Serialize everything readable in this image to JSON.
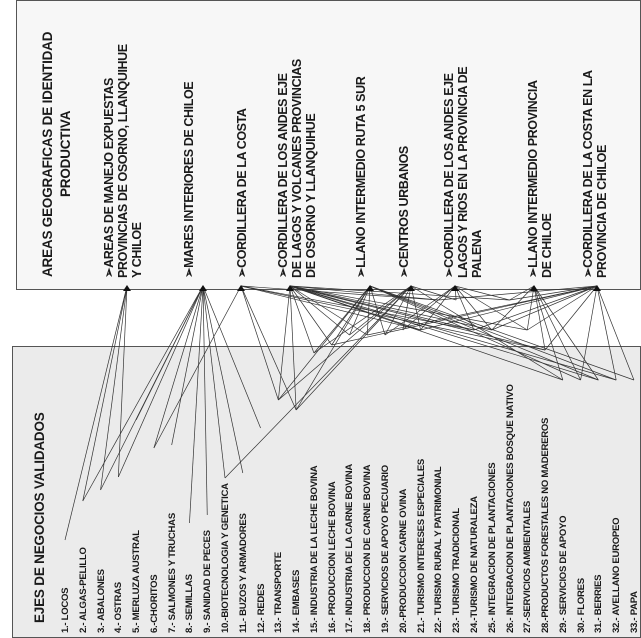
{
  "areas_panel": {
    "title_line1": "AREAS GEOGRAFICAS DE IDENTIDAD",
    "title_line2": "PRODUCTIVA",
    "areas": [
      {
        "lines": [
          "AREAS DE MANEJO EXPUESTAS",
          "PROVINCIAS DE OSORNO, LLANQUIHUE",
          "Y CHILOE"
        ]
      },
      {
        "lines": [
          "MARES INTERIORES DE CHILOE"
        ]
      },
      {
        "lines": [
          "CORDILLERA DE LA COSTA"
        ]
      },
      {
        "lines": [
          "CORDILLERA DE LOS ANDES EJE",
          "DE LAGOS Y VOLCANES PROVINCIAS",
          "DE OSORNO Y LLANQUIHUE"
        ]
      },
      {
        "lines": [
          "LLANO INTERMEDIO RUTA 5 SUR"
        ]
      },
      {
        "lines": [
          "CENTROS URBANOS"
        ]
      },
      {
        "lines": [
          "CORDILLERA DE LOS ANDES EJE",
          "LAGOS Y RIOS EN LA PROVINCIA DE",
          "PALENA"
        ]
      },
      {
        "lines": [
          "LLANO INTERMEDIO PROVINCIA",
          "DE CHILOE"
        ]
      },
      {
        "lines": [
          "CORDILLERA DE LA COSTA EN LA",
          "PROVINCIA DE CHILOE"
        ]
      }
    ]
  },
  "business_panel": {
    "title": "EJES DE NEGOCIOS VALIDADOS",
    "items": [
      "1.- LOCOS",
      "2.- ALGAS-PELILLO",
      "3.- ABALONES",
      "4.- OSTRAS",
      "5.- MERLUZA AUSTRAL",
      "6.-CHORITOS",
      "7.- SALMONES Y TRUCHAS",
      "8.- SEMILLAS",
      "9.- SANIDAD DE PECES",
      "10.-BIOTECNOLOGIA Y GENETICA",
      "11.- BUZOS Y ARMADORES",
      "12.- REDES",
      "13.- TRANSPORTE",
      "14.- EMBASES",
      "15.- INDUSTRIA DE LA LECHE BOVINA",
      "16.- PRODUCCION LECHE BOVINA",
      "17.- INDUSTRIA DE LA CARNE BOVINA",
      "18.- PRODUCCION DE CARNE BOVINA",
      "19.- SERVICIOS DE APOYO PECUARIO",
      "20.-PRODUCCION CARNE OVINA",
      "21.- TURISMO INTERESES ESPECIALES",
      "22.- TURISMO RURAL Y PATRIMONIAL",
      "23.- TURISMO TRADICIONAL",
      "24.-TURISMO DE NATURALEZA",
      "25.- INTEGRACION DE PLANTACIONES",
      "26.- INTEGRACION DE PLANTACIONES BOSQUE NATIVO",
      "27.-SERVICIOS AMBIENTALES",
      "28.-PRODUCTOS FORESTALES NO MADEREROS",
      "29.- SERVICIOS DE APOYO",
      "30.- FLORES",
      "31.- BERRIES",
      "32.- AVELLANO EUROPEO",
      "33.- PAPA"
    ]
  },
  "links": [
    [
      1,
      1
    ],
    [
      2,
      1
    ],
    [
      3,
      1
    ],
    [
      4,
      1
    ],
    [
      2,
      2
    ],
    [
      3,
      2
    ],
    [
      4,
      2
    ],
    [
      5,
      2
    ],
    [
      6,
      2
    ],
    [
      7,
      2
    ],
    [
      8,
      2
    ],
    [
      9,
      2
    ],
    [
      10,
      2
    ],
    [
      11,
      2
    ],
    [
      12,
      2
    ],
    [
      6,
      3
    ],
    [
      13,
      3
    ],
    [
      14,
      3
    ],
    [
      21,
      3
    ],
    [
      22,
      3
    ],
    [
      24,
      3
    ],
    [
      28,
      3
    ],
    [
      13,
      4
    ],
    [
      14,
      4
    ],
    [
      15,
      4
    ],
    [
      16,
      4
    ],
    [
      17,
      4
    ],
    [
      18,
      4
    ],
    [
      21,
      4
    ],
    [
      22,
      4
    ],
    [
      24,
      4
    ],
    [
      25,
      4
    ],
    [
      26,
      4
    ],
    [
      27,
      4
    ],
    [
      28,
      4
    ],
    [
      29,
      4
    ],
    [
      31,
      4
    ],
    [
      32,
      4
    ],
    [
      13,
      5
    ],
    [
      14,
      5
    ],
    [
      15,
      5
    ],
    [
      16,
      5
    ],
    [
      17,
      5
    ],
    [
      18,
      5
    ],
    [
      19,
      5
    ],
    [
      30,
      5
    ],
    [
      31,
      5
    ],
    [
      32,
      5
    ],
    [
      33,
      5
    ],
    [
      10,
      6
    ],
    [
      13,
      6
    ],
    [
      14,
      6
    ],
    [
      15,
      6
    ],
    [
      17,
      6
    ],
    [
      19,
      6
    ],
    [
      20,
      6
    ],
    [
      21,
      6
    ],
    [
      23,
      6
    ],
    [
      29,
      6
    ],
    [
      19,
      7
    ],
    [
      20,
      7
    ],
    [
      21,
      7
    ],
    [
      22,
      7
    ],
    [
      23,
      7
    ],
    [
      24,
      7
    ],
    [
      25,
      7
    ],
    [
      26,
      7
    ],
    [
      27,
      7
    ],
    [
      25,
      8
    ],
    [
      26,
      8
    ],
    [
      27,
      8
    ],
    [
      28,
      8
    ],
    [
      29,
      8
    ],
    [
      30,
      8
    ],
    [
      31,
      8
    ],
    [
      16,
      9
    ],
    [
      18,
      9
    ],
    [
      21,
      9
    ],
    [
      22,
      9
    ],
    [
      24,
      9
    ],
    [
      25,
      9
    ],
    [
      26,
      9
    ],
    [
      27,
      9
    ],
    [
      28,
      9
    ],
    [
      30,
      9
    ],
    [
      32,
      9
    ],
    [
      33,
      9
    ]
  ]
}
